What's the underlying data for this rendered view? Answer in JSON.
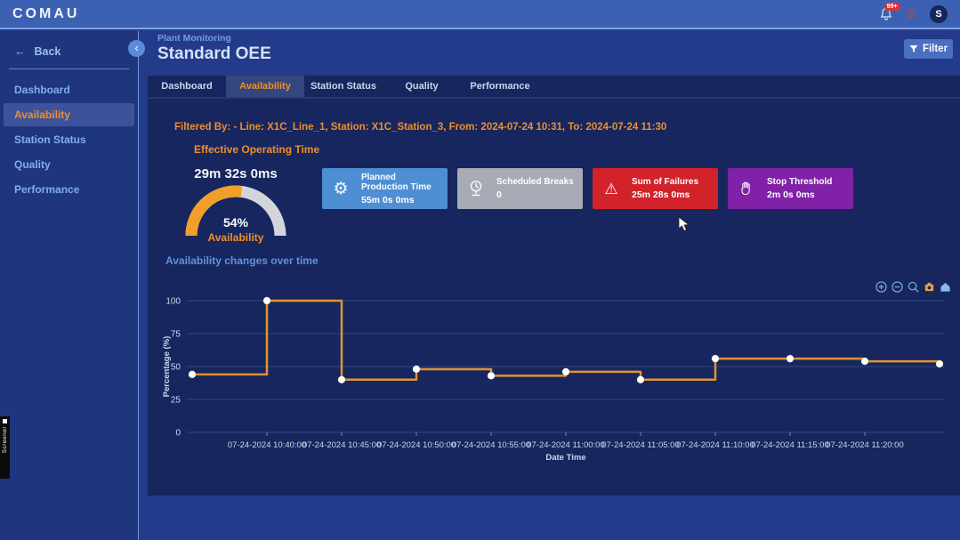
{
  "topbar": {
    "logo": "COMAU",
    "notifications_badge": "99+",
    "avatar_initial": "S"
  },
  "sidebar": {
    "back_label": "Back",
    "items": [
      {
        "label": "Dashboard",
        "active": false
      },
      {
        "label": "Availability",
        "active": true
      },
      {
        "label": "Station Status",
        "active": false
      },
      {
        "label": "Quality",
        "active": false
      },
      {
        "label": "Performance",
        "active": false
      }
    ]
  },
  "header": {
    "breadcrumb": "Plant Monitoring",
    "title": "Standard OEE",
    "filter_button": "Filter"
  },
  "tabs": [
    {
      "label": "Dashboard",
      "active": false
    },
    {
      "label": "Availability",
      "active": true
    },
    {
      "label": "Station Status",
      "active": false
    },
    {
      "label": "Quality",
      "active": false
    },
    {
      "label": "Performance",
      "active": false
    }
  ],
  "filters_summary": "Filtered By: - Line: X1C_Line_1, Station: X1C_Station_3, From: 2024-07-24 10:31, To: 2024-07-24 11:30",
  "effective_operating_time": {
    "section_title": "Effective Operating Time",
    "value": "29m 32s 0ms",
    "availability_percent": "54%",
    "availability_value": 54,
    "gauge_label": "Availability",
    "gauge_color": "#f0a028",
    "gauge_track_color": "#d2d5da"
  },
  "kpi_cards": [
    {
      "title": "Planned Production Time",
      "value": "55m 0s 0ms",
      "color": "#4e8ed2",
      "icon": "gear-icon"
    },
    {
      "title": "Scheduled Breaks",
      "value": "0",
      "color": "#a6abb5",
      "icon": "break-clock-icon"
    },
    {
      "title": "Sum of Failures",
      "value": "25m 28s 0ms",
      "color": "#d2222a",
      "icon": "warning-icon"
    },
    {
      "title": "Stop Threshold",
      "value": "2m 0s 0ms",
      "color": "#8021a8",
      "icon": "hand-icon"
    }
  ],
  "chart_data": {
    "type": "line",
    "title": "Availability changes over time",
    "xlabel": "Date Time",
    "ylabel": "Percentage (%)",
    "ylim": [
      0,
      100
    ],
    "y_ticks": [
      0,
      25,
      50,
      75,
      100
    ],
    "grid": true,
    "line_shape": "step-after",
    "line_color": "#e2932f",
    "marker_color": "#ffffff",
    "x_tick_labels": [
      "07-24-2024 10:40:00",
      "07-24-2024 10:45:00",
      "07-24-2024 10:50:00",
      "07-24-2024 10:55:00",
      "07-24-2024 11:00:00",
      "07-24-2024 11:05:00",
      "07-24-2024 11:10:00",
      "07-24-2024 11:15:00",
      "07-24-2024 11:20:00"
    ],
    "series": [
      {
        "name": "Availability",
        "points": [
          {
            "x": "07-24-2024 10:35:00",
            "y": 44
          },
          {
            "x": "07-24-2024 10:40:00",
            "y": 100
          },
          {
            "x": "07-24-2024 10:45:00",
            "y": 40
          },
          {
            "x": "07-24-2024 10:50:00",
            "y": 48
          },
          {
            "x": "07-24-2024 10:55:00",
            "y": 43
          },
          {
            "x": "07-24-2024 11:00:00",
            "y": 46
          },
          {
            "x": "07-24-2024 11:05:00",
            "y": 40
          },
          {
            "x": "07-24-2024 11:10:00",
            "y": 56
          },
          {
            "x": "07-24-2024 11:15:00",
            "y": 56
          },
          {
            "x": "07-24-2024 11:20:00",
            "y": 54
          },
          {
            "x": "07-24-2024 11:25:00",
            "y": 52
          }
        ]
      }
    ]
  },
  "side_ribbon": {
    "text": "Screener"
  }
}
